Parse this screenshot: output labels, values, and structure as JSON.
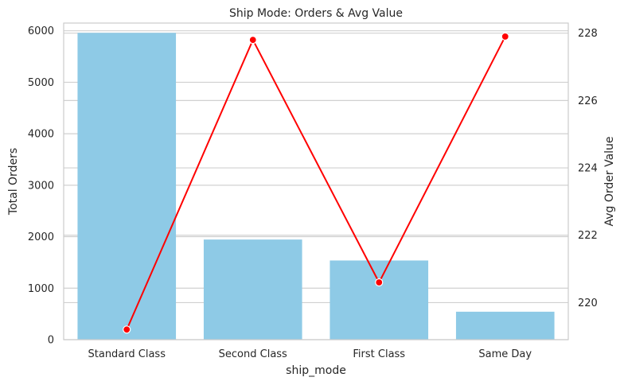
{
  "chart_data": {
    "type": "bar",
    "title": "Ship Mode: Orders & Avg Value",
    "xlabel": "ship_mode",
    "ylabel": "Total Orders",
    "y2label": "Avg Order Value",
    "categories": [
      "Standard Class",
      "Second Class",
      "First Class",
      "Same Day"
    ],
    "series": [
      {
        "type": "bar",
        "axis": "left",
        "color": "#8ecae6",
        "values": [
          5960,
          1945,
          1538,
          543
        ]
      },
      {
        "type": "line",
        "axis": "right",
        "color": "#ff0000",
        "marker": "circle",
        "values": [
          219.2,
          227.8,
          220.6,
          227.9
        ]
      }
    ],
    "ylim": [
      0,
      6150
    ],
    "y2lim": [
      218.9,
      228.3
    ],
    "yticks": [
      0,
      1000,
      2000,
      3000,
      4000,
      5000,
      6000
    ],
    "y2ticks": [
      220,
      222,
      224,
      226,
      228
    ],
    "grid": true
  }
}
